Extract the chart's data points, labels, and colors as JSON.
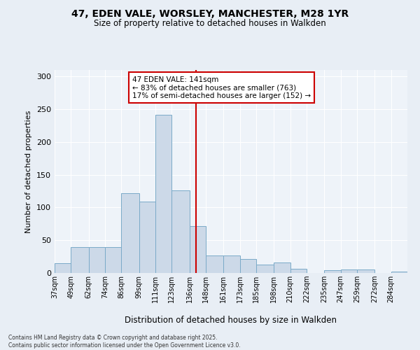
{
  "title_line1": "47, EDEN VALE, WORSLEY, MANCHESTER, M28 1YR",
  "title_line2": "Size of property relative to detached houses in Walkden",
  "xlabel": "Distribution of detached houses by size in Walkden",
  "ylabel": "Number of detached properties",
  "footer": "Contains HM Land Registry data © Crown copyright and database right 2025.\nContains public sector information licensed under the Open Government Licence v3.0.",
  "annotation_title": "47 EDEN VALE: 141sqm",
  "annotation_line2": "← 83% of detached houses are smaller (763)",
  "annotation_line3": "17% of semi-detached houses are larger (152) →",
  "property_size": 141,
  "bar_color": "#ccd9e8",
  "bar_edge_color": "#7aaac8",
  "marker_color": "#cc0000",
  "categories": [
    "37sqm",
    "49sqm",
    "62sqm",
    "74sqm",
    "86sqm",
    "99sqm",
    "111sqm",
    "123sqm",
    "136sqm",
    "148sqm",
    "161sqm",
    "173sqm",
    "185sqm",
    "198sqm",
    "210sqm",
    "222sqm",
    "235sqm",
    "247sqm",
    "259sqm",
    "272sqm",
    "284sqm"
  ],
  "values": [
    15,
    40,
    40,
    40,
    122,
    109,
    242,
    126,
    72,
    27,
    27,
    21,
    13,
    16,
    6,
    0,
    4,
    5,
    5,
    0,
    2
  ],
  "bin_edges": [
    37,
    49,
    62,
    74,
    86,
    99,
    111,
    123,
    136,
    148,
    161,
    173,
    185,
    198,
    210,
    222,
    235,
    247,
    259,
    272,
    284,
    296
  ],
  "ylim": [
    0,
    310
  ],
  "yticks": [
    0,
    50,
    100,
    150,
    200,
    250,
    300
  ],
  "bg_color": "#e8eef5",
  "plot_bg_color": "#eef3f9",
  "grid_color": "#ffffff",
  "annotation_border_color": "#cc0000"
}
